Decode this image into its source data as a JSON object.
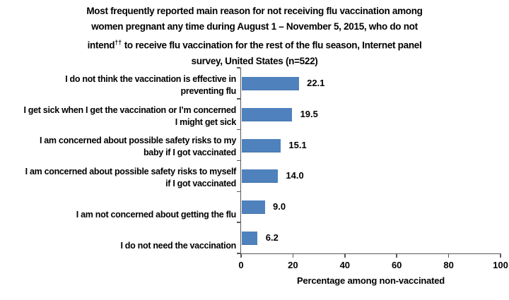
{
  "title": {
    "part1": "Most frequently reported main reason for not receiving flu vaccination among\nwomen pregnant any time during August 1 – November 5, 2015, who do not\nintend",
    "superscript": "††",
    "part2": " to receive flu vaccination for the rest of the flu season, Internet panel\nsurvey, United States (n=522)"
  },
  "chart_data": {
    "type": "bar",
    "orientation": "horizontal",
    "title": "Most frequently reported main reason for not receiving flu vaccination among women pregnant any time during August 1 – November 5, 2015, who do not intend†† to receive flu vaccination for the rest of the flu season, Internet panel survey, United States (n=522)",
    "categories": [
      "I do not think the vaccination is effective in\npreventing flu",
      "I get sick when I get the vaccination or I’m concerned\nI might get sick",
      "I am concerned about possible safety risks to my\nbaby if I got vaccinated",
      "I am concerned about possible safety risks to myself\nif I got vaccinated",
      "I am not concerned about getting the flu",
      "I do not need the vaccination"
    ],
    "values": [
      22.1,
      19.5,
      15.1,
      14.0,
      9.0,
      6.2
    ],
    "value_labels": [
      "22.1",
      "19.5",
      "15.1",
      "14.0",
      "9.0",
      "6.2"
    ],
    "xlabel": "Percentage among non-vaccinated",
    "ylabel": "",
    "xlim": [
      0,
      100
    ],
    "x_ticks": [
      0,
      20,
      40,
      60,
      80,
      100
    ],
    "x_tick_labels": [
      "0",
      "20",
      "40",
      "60",
      "80",
      "100"
    ],
    "grid": false,
    "legend": null,
    "bar_color": "#4F81BD",
    "axis_color": "#595959",
    "text_color": "#000000"
  }
}
